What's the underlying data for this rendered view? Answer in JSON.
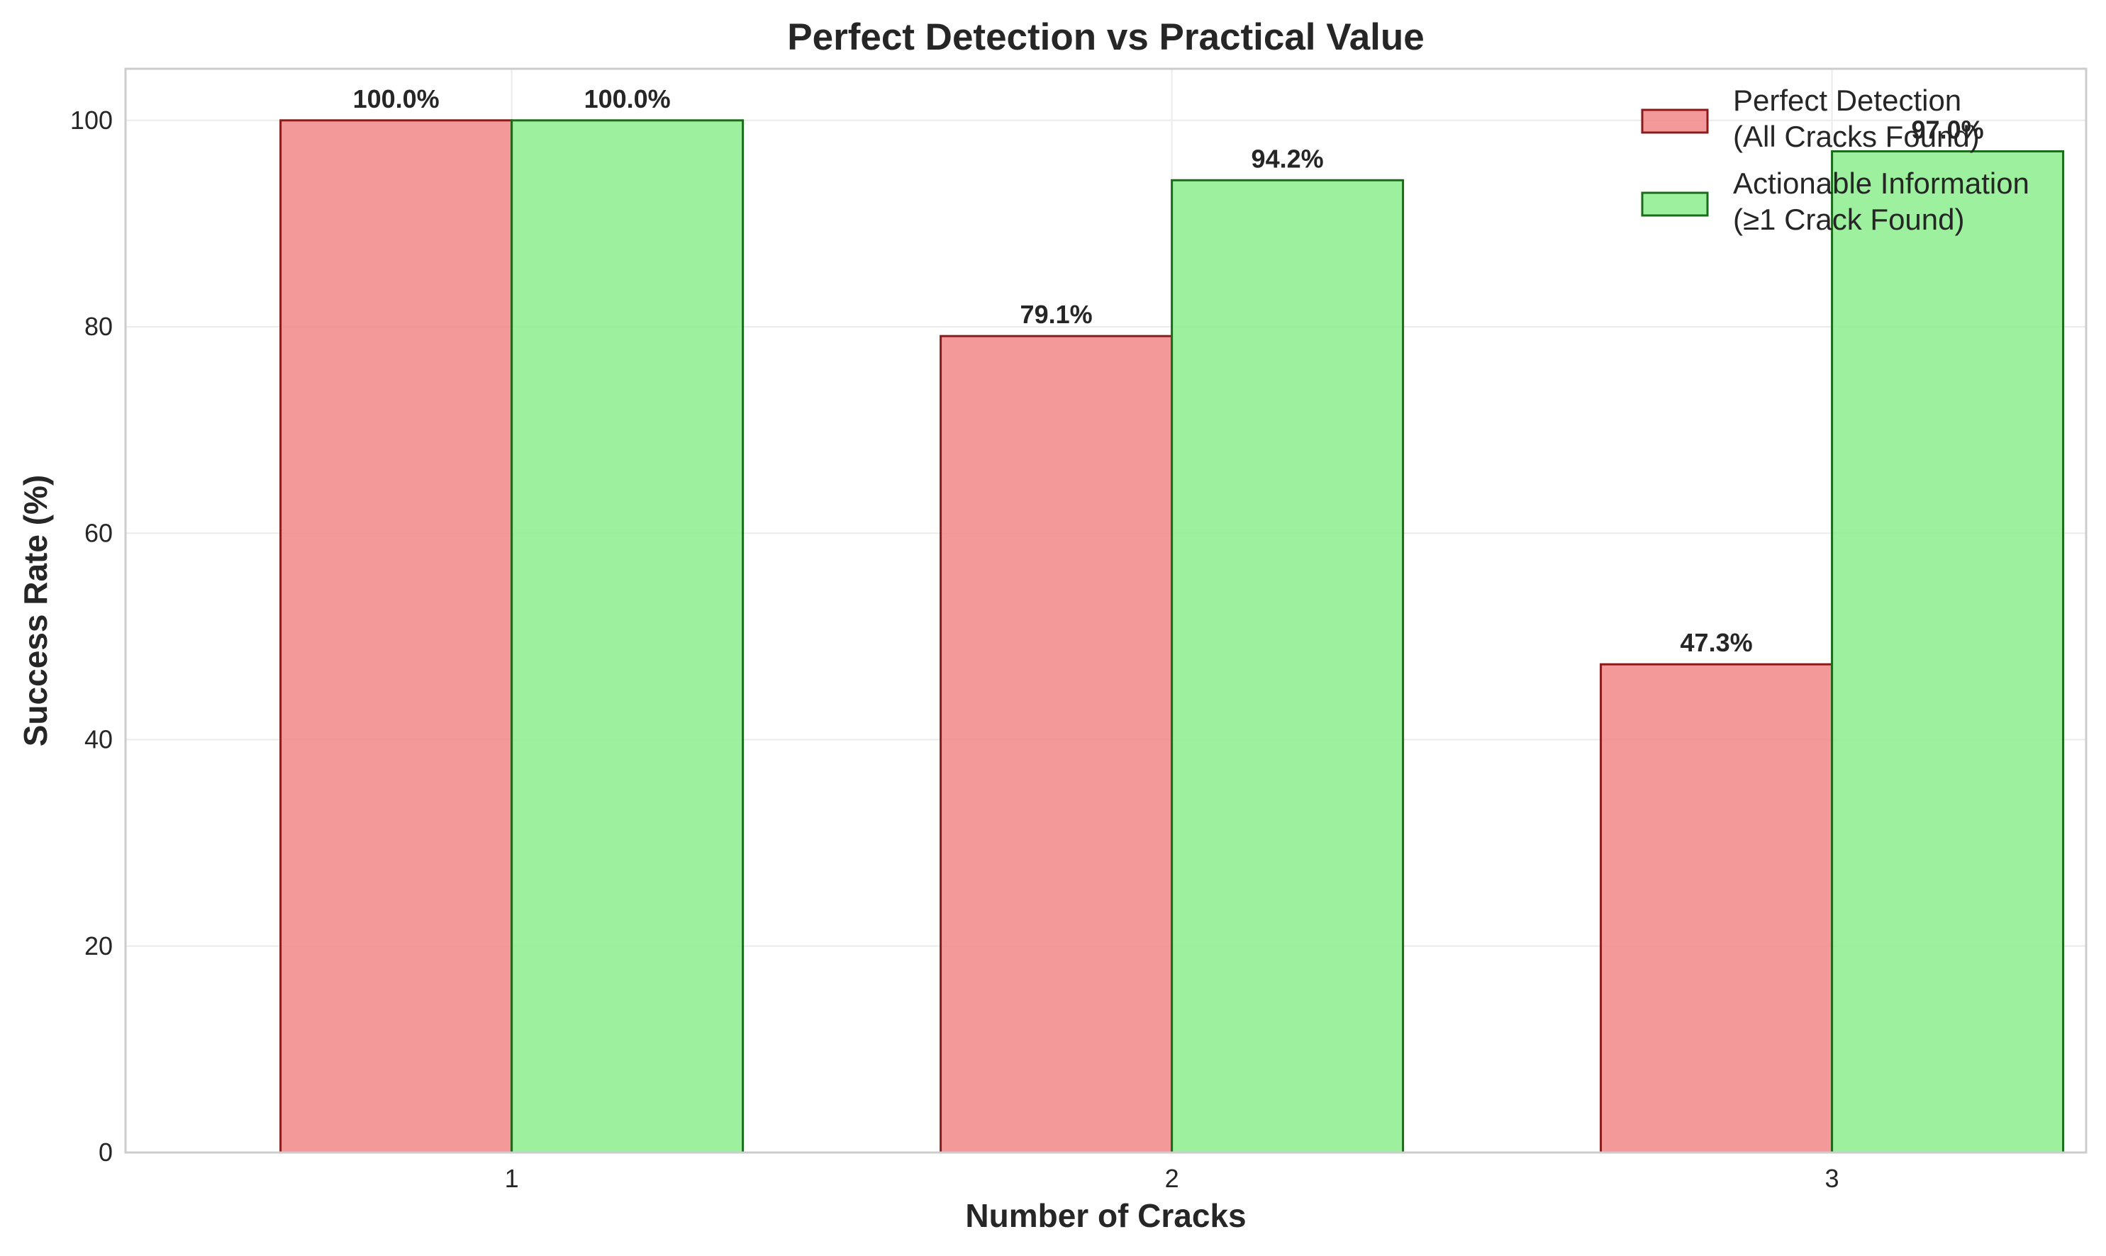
{
  "chart_data": {
    "type": "bar",
    "title": "Perfect Detection vs Practical Value",
    "xlabel": "Number of Cracks",
    "ylabel": "Success Rate (%)",
    "categories": [
      "1",
      "2",
      "3"
    ],
    "ylim": [
      0,
      105
    ],
    "yticks": [
      0,
      20,
      40,
      60,
      80,
      100
    ],
    "grid": true,
    "legend_position": "top-right",
    "series": [
      {
        "name": "Perfect Detection\n(All Cracks Found)",
        "legend_lines": [
          "Perfect Detection",
          "(All Cracks Found)"
        ],
        "values": [
          100.0,
          79.1,
          47.3
        ],
        "labels": [
          "100.0%",
          "79.1%",
          "47.3%"
        ],
        "fill": "#f28b8b",
        "stroke": "#8b1a1a"
      },
      {
        "name": "Actionable Information\n(≥1 Crack Found)",
        "legend_lines": [
          "Actionable Information",
          "(≥1 Crack Found)"
        ],
        "values": [
          100.0,
          94.2,
          97.0
        ],
        "labels": [
          "100.0%",
          "94.2%",
          "97.0%"
        ],
        "fill": "#90ee90",
        "stroke": "#1a6b1a"
      }
    ]
  }
}
